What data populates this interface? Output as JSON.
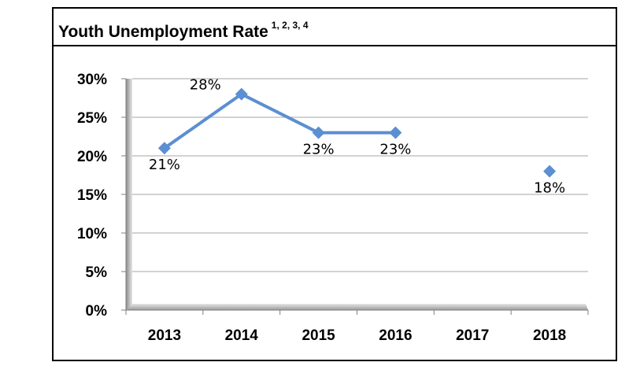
{
  "chart_data": {
    "type": "line",
    "title": "Youth Unemployment Rate",
    "title_superscript": "1, 2, 3, 4",
    "categories": [
      "2013",
      "2014",
      "2015",
      "2016",
      "2017",
      "2018"
    ],
    "series": [
      {
        "values": [
          21,
          28,
          23,
          23,
          null,
          18
        ]
      }
    ],
    "data_labels": [
      "21%",
      "28%",
      "23%",
      "23%",
      "",
      "18%"
    ],
    "y_ticks": [
      {
        "value": 0,
        "label": "0%"
      },
      {
        "value": 5,
        "label": "5%"
      },
      {
        "value": 10,
        "label": "10%"
      },
      {
        "value": 15,
        "label": "15%"
      },
      {
        "value": 20,
        "label": "20%"
      },
      {
        "value": 25,
        "label": "25%"
      },
      {
        "value": 30,
        "label": "30%"
      }
    ],
    "ylim": [
      0,
      30
    ],
    "grid": true,
    "line_color": "#5b8fd1"
  }
}
